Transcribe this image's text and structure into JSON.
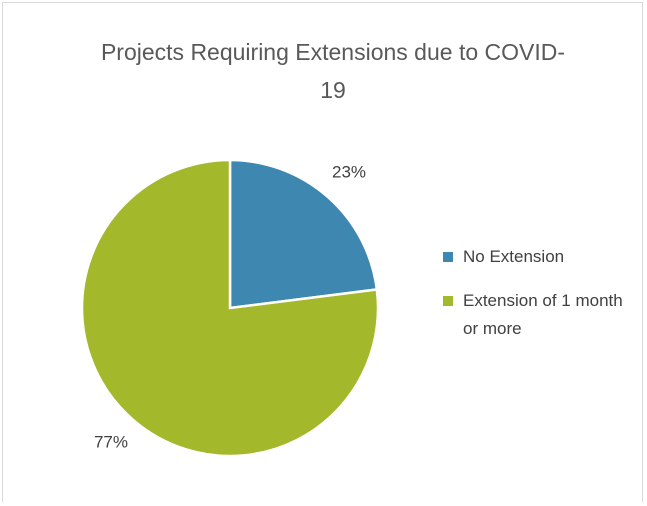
{
  "chart_data": {
    "type": "pie",
    "title": "Projects Requiring Extensions due to COVID-19",
    "categories": [
      "No Extension",
      "Extension of 1 month or more"
    ],
    "values": [
      23,
      77
    ],
    "value_labels": [
      "23%",
      "77%"
    ],
    "colors": [
      "#3d87b0",
      "#a3b82b"
    ],
    "legend": "right"
  }
}
